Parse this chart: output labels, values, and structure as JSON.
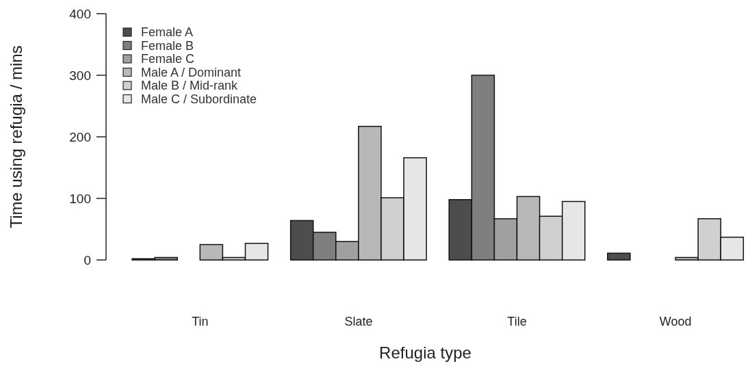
{
  "chart_data": {
    "type": "bar",
    "xlabel": "Refugia type",
    "ylabel": "Time using refugia / mins",
    "categories": [
      "Tin",
      "Slate",
      "Tile",
      "Wood"
    ],
    "series": [
      {
        "name": "Female A",
        "color": "#4d4d4d",
        "values": [
          2,
          64,
          98,
          11
        ]
      },
      {
        "name": "Female B",
        "color": "#7f7f7f",
        "values": [
          4,
          45,
          300,
          0
        ]
      },
      {
        "name": "Female C",
        "color": "#a0a0a0",
        "values": [
          0,
          30,
          67,
          0
        ]
      },
      {
        "name": "Male A / Dominant",
        "color": "#b8b8b8",
        "values": [
          25,
          217,
          103,
          4
        ]
      },
      {
        "name": "Male B / Mid-rank",
        "color": "#d0d0d0",
        "values": [
          4,
          101,
          71,
          67
        ]
      },
      {
        "name": "Male C / Subordinate",
        "color": "#e6e6e6",
        "values": [
          27,
          166,
          95,
          37
        ]
      }
    ],
    "ylim": [
      0,
      400
    ],
    "yticks": [
      0,
      100,
      200,
      300,
      400
    ],
    "legend": "top left"
  }
}
